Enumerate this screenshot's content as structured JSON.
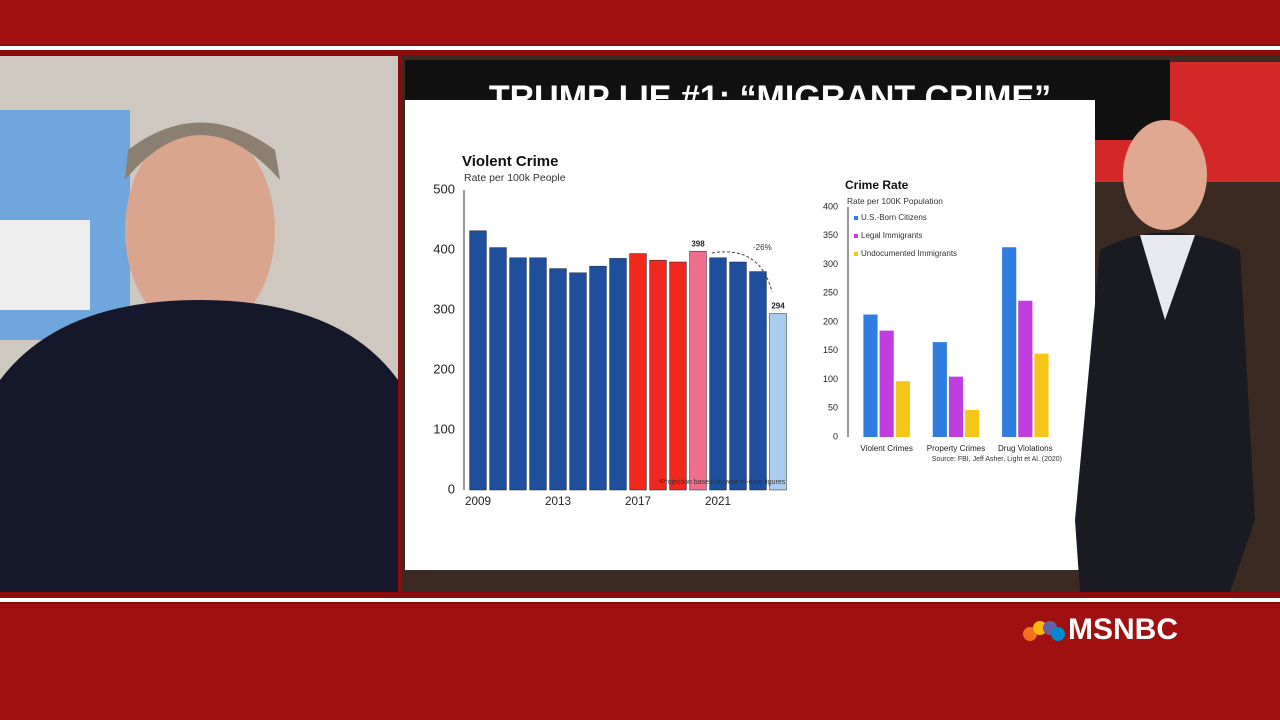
{
  "headline": "TRUMP LIE #1: “MIGRANT CRIME”",
  "network": "MSNBC",
  "chart_data": [
    {
      "type": "bar",
      "title": "Violent Crime",
      "subtitle": "Rate per 100k People",
      "categories": [
        "2009",
        null,
        null,
        null,
        "2013",
        null,
        null,
        null,
        "2017",
        null,
        null,
        null,
        "2021",
        null,
        null,
        null
      ],
      "values": [
        432,
        404,
        387,
        387,
        369,
        362,
        373,
        386,
        394,
        383,
        380,
        398,
        387,
        380,
        364,
        294
      ],
      "value_labels": [
        null,
        null,
        null,
        null,
        null,
        null,
        null,
        null,
        null,
        null,
        null,
        "398",
        null,
        null,
        null,
        "294"
      ],
      "colors": [
        "#1f4e9c",
        "#1f4e9c",
        "#1f4e9c",
        "#1f4e9c",
        "#1f4e9c",
        "#1f4e9c",
        "#1f4e9c",
        "#1f4e9c",
        "#f0281e",
        "#f0281e",
        "#f0281e",
        "#f06e8c",
        "#1f4e9c",
        "#1f4e9c",
        "#1f4e9c",
        "#a9cdee"
      ],
      "ylim": [
        0,
        500
      ],
      "yticks": [
        0,
        100,
        200,
        300,
        400,
        500
      ],
      "annotation": "-26%",
      "note": "*Projection based on year-to-date figures"
    },
    {
      "type": "bar",
      "title": "Crime Rate",
      "subtitle": "Rate per 100K Population",
      "categories": [
        "Violent Crimes",
        "Property Crimes",
        "Drug Violations"
      ],
      "series": [
        {
          "name": "U.S.-Born Citizens",
          "color": "#2f7de0",
          "values": [
            213,
            165,
            330
          ]
        },
        {
          "name": "Legal Immigrants",
          "color": "#c03ee0",
          "values": [
            185,
            105,
            237
          ]
        },
        {
          "name": "Undocumented Immigrants",
          "color": "#f5c518",
          "values": [
            97,
            47,
            145
          ]
        }
      ],
      "ylim": [
        0,
        400
      ],
      "yticks": [
        0,
        50,
        100,
        150,
        200,
        250,
        300,
        350,
        400
      ],
      "legend": "top-left",
      "source": "Source: FBI, Jeff Asher, Light et Al. (2020)"
    }
  ]
}
